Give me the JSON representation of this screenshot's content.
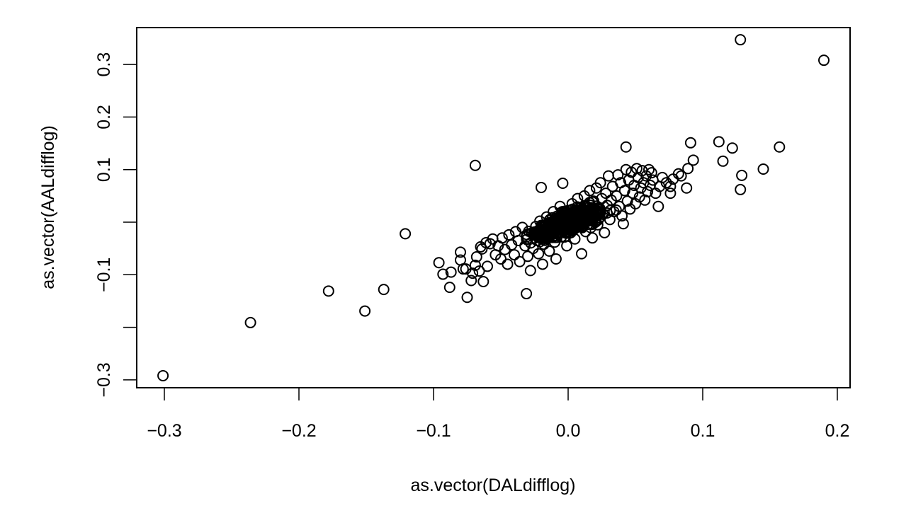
{
  "chart_data": {
    "type": "scatter",
    "title": "",
    "xlabel": "as.vector(DALdifflog)",
    "ylabel": "as.vector(AALdifflog)",
    "xlim": [
      -0.32,
      0.21
    ],
    "ylim": [
      -0.315,
      0.365
    ],
    "x_ticks": [
      -0.3,
      -0.2,
      -0.1,
      0.0,
      0.1,
      0.2
    ],
    "x_tick_labels": [
      "−0.3",
      "−0.2",
      "−0.1",
      "0.0",
      "0.1",
      "0.2"
    ],
    "y_ticks": [
      -0.3,
      -0.2,
      -0.1,
      0.0,
      0.1,
      0.2,
      0.3
    ],
    "y_tick_labels": [
      "−0.3",
      "",
      "−0.1",
      "",
      "0.1",
      "0.2",
      "0.3"
    ],
    "grid": false,
    "legend": null,
    "marker": "open-circle",
    "marker_color": "#000000",
    "outliers": [
      [
        -0.301,
        -0.292
      ],
      [
        -0.236,
        -0.191
      ],
      [
        -0.178,
        -0.131
      ],
      [
        -0.151,
        -0.169
      ],
      [
        -0.137,
        -0.128
      ],
      [
        -0.121,
        -0.022
      ],
      [
        -0.069,
        0.108
      ],
      [
        -0.031,
        -0.136
      ],
      [
        0.128,
        0.347
      ],
      [
        0.19,
        0.308
      ],
      [
        0.157,
        0.143
      ],
      [
        0.112,
        0.153
      ],
      [
        0.122,
        0.141
      ],
      [
        0.115,
        0.116
      ],
      [
        0.145,
        0.101
      ],
      [
        0.129,
        0.089
      ],
      [
        0.128,
        0.062
      ],
      [
        0.091,
        0.151
      ],
      [
        0.093,
        0.118
      ],
      [
        0.043,
        0.143
      ]
    ],
    "points": [
      [
        -0.096,
        -0.077
      ],
      [
        -0.093,
        -0.099
      ],
      [
        -0.088,
        -0.124
      ],
      [
        -0.087,
        -0.095
      ],
      [
        -0.08,
        -0.057
      ],
      [
        -0.08,
        -0.072
      ],
      [
        -0.078,
        -0.089
      ],
      [
        -0.076,
        -0.089
      ],
      [
        -0.075,
        -0.143
      ],
      [
        -0.072,
        -0.111
      ],
      [
        -0.071,
        -0.097
      ],
      [
        -0.069,
        -0.082
      ],
      [
        -0.068,
        -0.066
      ],
      [
        -0.066,
        -0.093
      ],
      [
        -0.065,
        -0.047
      ],
      [
        -0.064,
        -0.051
      ],
      [
        -0.063,
        -0.113
      ],
      [
        -0.061,
        -0.039
      ],
      [
        -0.06,
        -0.084
      ],
      [
        -0.058,
        -0.041
      ],
      [
        -0.056,
        -0.032
      ],
      [
        -0.054,
        -0.062
      ],
      [
        -0.052,
        -0.045
      ],
      [
        -0.05,
        -0.07
      ],
      [
        -0.049,
        -0.03
      ],
      [
        -0.047,
        -0.052
      ],
      [
        -0.045,
        -0.08
      ],
      [
        -0.044,
        -0.024
      ],
      [
        -0.042,
        -0.043
      ],
      [
        -0.04,
        -0.062
      ],
      [
        -0.039,
        -0.018
      ],
      [
        -0.037,
        -0.035
      ],
      [
        -0.036,
        -0.075
      ],
      [
        -0.034,
        -0.01
      ],
      [
        -0.032,
        -0.045
      ],
      [
        -0.031,
        -0.028
      ],
      [
        -0.03,
        -0.065
      ],
      [
        -0.028,
        -0.092
      ],
      [
        -0.027,
        -0.02
      ],
      [
        -0.026,
        -0.05
      ],
      [
        -0.024,
        -0.008
      ],
      [
        -0.023,
        -0.035
      ],
      [
        -0.022,
        -0.06
      ],
      [
        -0.021,
        0.002
      ],
      [
        -0.02,
        -0.025
      ],
      [
        -0.02,
        0.066
      ],
      [
        -0.019,
        -0.08
      ],
      [
        -0.018,
        -0.042
      ],
      [
        -0.017,
        -0.012
      ],
      [
        -0.016,
        0.01
      ],
      [
        -0.015,
        -0.03
      ],
      [
        -0.014,
        -0.055
      ],
      [
        -0.013,
        -0.002
      ],
      [
        -0.012,
        -0.02
      ],
      [
        -0.011,
        0.02
      ],
      [
        -0.01,
        -0.038
      ],
      [
        -0.009,
        -0.07
      ],
      [
        -0.008,
        0.005
      ],
      [
        -0.007,
        -0.015
      ],
      [
        -0.006,
        0.03
      ],
      [
        -0.005,
        -0.028
      ],
      [
        -0.004,
        0.074
      ],
      [
        -0.003,
        0.012
      ],
      [
        -0.002,
        -0.01
      ],
      [
        -0.001,
        -0.045
      ],
      [
        0.0,
        0.022
      ],
      [
        0.001,
        0.0
      ],
      [
        0.002,
        -0.02
      ],
      [
        0.003,
        0.035
      ],
      [
        0.004,
        0.008
      ],
      [
        0.005,
        -0.032
      ],
      [
        0.006,
        0.018
      ],
      [
        0.007,
        0.045
      ],
      [
        0.008,
        -0.008
      ],
      [
        0.009,
        0.028
      ],
      [
        0.01,
        -0.06
      ],
      [
        0.011,
        0.012
      ],
      [
        0.012,
        0.05
      ],
      [
        0.013,
        -0.018
      ],
      [
        0.014,
        0.03
      ],
      [
        0.015,
        0.002
      ],
      [
        0.016,
        0.06
      ],
      [
        0.017,
        0.022
      ],
      [
        0.018,
        -0.03
      ],
      [
        0.019,
        0.04
      ],
      [
        0.02,
        0.01
      ],
      [
        0.021,
        0.065
      ],
      [
        0.022,
        -0.005
      ],
      [
        0.023,
        0.028
      ],
      [
        0.024,
        0.075
      ],
      [
        0.025,
        0.045
      ],
      [
        0.026,
        0.015
      ],
      [
        0.027,
        -0.02
      ],
      [
        0.028,
        0.055
      ],
      [
        0.029,
        0.032
      ],
      [
        0.03,
        0.088
      ],
      [
        0.031,
        0.005
      ],
      [
        0.032,
        0.042
      ],
      [
        0.033,
        0.068
      ],
      [
        0.034,
        0.02
      ],
      [
        0.036,
        0.05
      ],
      [
        0.037,
        0.09
      ],
      [
        0.038,
        0.03
      ],
      [
        0.039,
        0.075
      ],
      [
        0.04,
        0.012
      ],
      [
        0.041,
        -0.003
      ],
      [
        0.042,
        0.06
      ],
      [
        0.043,
        0.1
      ],
      [
        0.044,
        0.04
      ],
      [
        0.045,
        0.08
      ],
      [
        0.046,
        0.025
      ],
      [
        0.047,
        0.095
      ],
      [
        0.048,
        0.055
      ],
      [
        0.049,
        0.07
      ],
      [
        0.05,
        0.035
      ],
      [
        0.051,
        0.102
      ],
      [
        0.052,
        0.085
      ],
      [
        0.053,
        0.048
      ],
      [
        0.054,
        0.065
      ],
      [
        0.055,
        0.098
      ],
      [
        0.056,
        0.075
      ],
      [
        0.057,
        0.042
      ],
      [
        0.058,
        0.088
      ],
      [
        0.059,
        0.058
      ],
      [
        0.06,
        0.1
      ],
      [
        0.061,
        0.07
      ],
      [
        0.062,
        0.094
      ],
      [
        0.063,
        0.08
      ],
      [
        0.065,
        0.055
      ],
      [
        0.067,
        0.03
      ],
      [
        0.068,
        0.068
      ],
      [
        0.07,
        0.085
      ],
      [
        0.073,
        0.075
      ],
      [
        0.076,
        0.055
      ],
      [
        0.076,
        0.068
      ],
      [
        0.078,
        0.082
      ],
      [
        0.082,
        0.092
      ],
      [
        0.084,
        0.088
      ],
      [
        0.088,
        0.065
      ],
      [
        0.089,
        0.102
      ]
    ],
    "core": {
      "description": "dense band along y ≈ 1.0·x, x from -0.05 to 0.05",
      "center": [
        0.0,
        0.0
      ],
      "count_approx": 700
    }
  }
}
